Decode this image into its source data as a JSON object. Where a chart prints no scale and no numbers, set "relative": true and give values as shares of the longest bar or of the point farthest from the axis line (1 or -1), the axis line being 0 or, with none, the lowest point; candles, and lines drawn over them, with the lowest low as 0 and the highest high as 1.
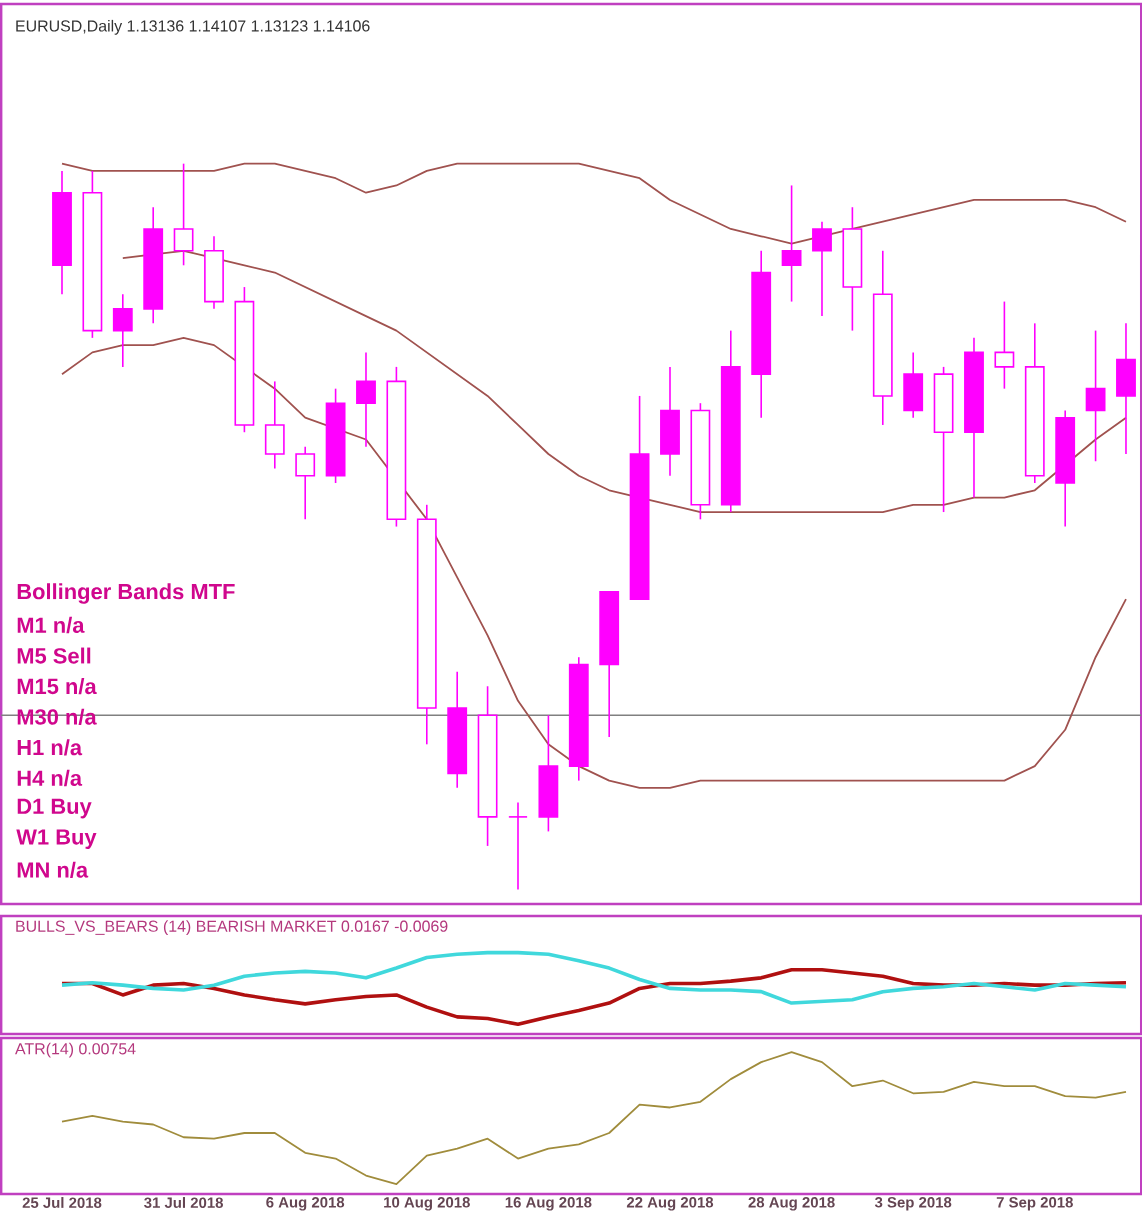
{
  "chart_data": [
    {
      "type": "candlestick",
      "title": "EURUSD,Daily  1.13136 1.14107 1.13123 1.14106",
      "relative": true,
      "tick_labels": false,
      "color": "#ff00ff",
      "ohlc": [
        [
          0.86,
          0.99,
          0.82,
          0.96
        ],
        [
          0.96,
          0.99,
          0.76,
          0.77
        ],
        [
          0.77,
          0.82,
          0.72,
          0.8
        ],
        [
          0.8,
          0.94,
          0.78,
          0.91
        ],
        [
          0.91,
          1.0,
          0.86,
          0.88
        ],
        [
          0.88,
          0.9,
          0.8,
          0.81
        ],
        [
          0.81,
          0.83,
          0.63,
          0.64
        ],
        [
          0.64,
          0.7,
          0.58,
          0.6
        ],
        [
          0.6,
          0.61,
          0.51,
          0.57
        ],
        [
          0.57,
          0.69,
          0.56,
          0.67
        ],
        [
          0.67,
          0.74,
          0.61,
          0.7
        ],
        [
          0.7,
          0.72,
          0.5,
          0.51
        ],
        [
          0.51,
          0.53,
          0.2,
          0.25
        ],
        [
          0.16,
          0.3,
          0.14,
          0.25
        ],
        [
          0.24,
          0.28,
          0.06,
          0.1
        ],
        [
          0.1,
          0.12,
          0,
          0.1
        ],
        [
          0.1,
          0.24,
          0.08,
          0.17
        ],
        [
          0.17,
          0.32,
          0.15,
          0.31
        ],
        [
          0.31,
          0.41,
          0.21,
          0.41
        ],
        [
          0.4,
          0.68,
          0.4,
          0.6
        ],
        [
          0.6,
          0.72,
          0.57,
          0.66
        ],
        [
          0.66,
          0.67,
          0.51,
          0.53
        ],
        [
          0.53,
          0.77,
          0.52,
          0.72
        ],
        [
          0.71,
          0.88,
          0.65,
          0.85
        ],
        [
          0.86,
          0.97,
          0.81,
          0.88
        ],
        [
          0.88,
          0.92,
          0.79,
          0.91
        ],
        [
          0.91,
          0.94,
          0.77,
          0.83
        ],
        [
          0.82,
          0.88,
          0.64,
          0.68
        ],
        [
          0.66,
          0.74,
          0.65,
          0.71
        ],
        [
          0.71,
          0.72,
          0.52,
          0.63
        ],
        [
          0.63,
          0.76,
          0.54,
          0.74
        ],
        [
          0.74,
          0.81,
          0.69,
          0.72
        ],
        [
          0.72,
          0.78,
          0.56,
          0.57
        ],
        [
          0.56,
          0.66,
          0.5,
          0.65
        ],
        [
          0.66,
          0.77,
          0.59,
          0.69
        ],
        [
          0.68,
          0.78,
          0.6,
          0.73
        ]
      ],
      "series": [
        {
          "type": "line",
          "color": "#a0524f",
          "values": [
            1.0,
            0.99,
            0.99,
            0.99,
            0.99,
            0.99,
            1.0,
            1.0,
            0.99,
            0.98,
            0.96,
            0.97,
            0.99,
            1.0,
            1.0,
            1.0,
            1.0,
            1.0,
            0.99,
            0.98,
            0.95,
            0.93,
            0.91,
            0.9,
            0.89,
            null,
            0.91,
            0.92,
            0.93,
            0.94,
            0.95,
            0.95,
            0.95,
            0.95,
            0.94,
            0.92
          ]
        },
        {
          "type": "line",
          "color": "#a0524f",
          "values": [
            null,
            null,
            0.87,
            null,
            0.88,
            null,
            0.86,
            0.85,
            0.83,
            0.81,
            0.79,
            0.77,
            0.74,
            0.71,
            0.68,
            0.64,
            0.6,
            0.57,
            0.55,
            null,
            0.53,
            0.52,
            0.52,
            0.52,
            0.52,
            0.52,
            0.52,
            0.52,
            0.53,
            0.53,
            0.54,
            0.54,
            0.55,
            null,
            0.62,
            0.65
          ]
        },
        {
          "type": "line",
          "color": "#a0524f",
          "values": [
            0.71,
            0.74,
            0.75,
            0.75,
            0.76,
            0.75,
            null,
            0.69,
            0.65,
            null,
            0.62,
            null,
            0.51,
            0.43,
            0.35,
            0.26,
            0.2,
            0.17,
            0.15,
            0.14,
            0.14,
            0.15,
            0.15,
            0.15,
            0.15,
            0.15,
            0.15,
            0.15,
            0.15,
            0.15,
            0.15,
            0.15,
            0.17,
            0.22,
            0.32,
            0.4
          ]
        }
      ],
      "ref_lines": [
        {
          "axis": "y",
          "value": 0.24,
          "color": "#808080"
        }
      ],
      "annotations": [
        "Bollinger Bands MTF",
        "M1     n/a",
        "M5     Sell",
        "M15    n/a",
        "M30    n/a",
        "H1      n/a",
        "H4      n/a",
        "D1      Buy",
        "W1      Buy",
        "MN      n/a"
      ]
    },
    {
      "type": "line",
      "title": "BULLS_VS_BEARS (14)  BEARISH MARKET 0.0167 -0.0069",
      "relative": true,
      "tick_labels": false,
      "series": [
        {
          "color": "#b01010",
          "values": [
            0.62,
            0.62,
            0.48,
            0.6,
            0.62,
            0.56,
            0.48,
            0.42,
            0.37,
            0.42,
            0.46,
            0.48,
            0.33,
            0.21,
            0.19,
            0.12,
            0.21,
            0.29,
            0.38,
            0.56,
            0.62,
            0.62,
            0.65,
            0.69,
            0.79,
            0.79,
            0.75,
            0.71,
            0.62,
            0.6,
            0.6,
            0.62,
            0.6,
            0.6,
            0.62,
            0.63
          ]
        },
        {
          "color": "#40d8dc",
          "values": [
            0.6,
            0.63,
            0.6,
            0.56,
            0.54,
            0.6,
            0.71,
            0.75,
            0.77,
            0.75,
            0.69,
            0.81,
            0.94,
            0.98,
            1.0,
            1.0,
            0.98,
            0.9,
            0.81,
            0.67,
            0.56,
            0.54,
            0.54,
            0.52,
            0.38,
            0.4,
            0.42,
            0.52,
            0.56,
            0.58,
            0.62,
            0.58,
            0.54,
            0.62,
            0.6,
            0.58
          ]
        }
      ]
    },
    {
      "type": "line",
      "title": "ATR(14) 0.00754",
      "relative": true,
      "categories": [
        "25 Jul 2018",
        null,
        null,
        null,
        "31 Jul 2018",
        null,
        null,
        null,
        "6 Aug 2018",
        null,
        null,
        null,
        "10 Aug 2018",
        null,
        null,
        null,
        "16 Aug 2018",
        null,
        null,
        null,
        "22 Aug 2018",
        null,
        null,
        null,
        "28 Aug 2018",
        null,
        null,
        null,
        "3 Sep 2018",
        null,
        null,
        null,
        "7 Sep 2018",
        null,
        null,
        null
      ],
      "series": [
        {
          "color": "#a08c3c",
          "values": [
            0.51,
            0.55,
            0.51,
            0.49,
            0.4,
            0.39,
            0.43,
            0.43,
            0.29,
            0.25,
            0.13,
            0.07,
            0.27,
            0.32,
            0.39,
            0.25,
            0.32,
            0.35,
            0.43,
            0.63,
            0.61,
            0.65,
            0.81,
            0.93,
            1.0,
            0.93,
            0.76,
            0.8,
            0.71,
            0.72,
            0.79,
            0.76,
            0.76,
            0.69,
            0.68,
            0.72
          ]
        }
      ]
    }
  ]
}
